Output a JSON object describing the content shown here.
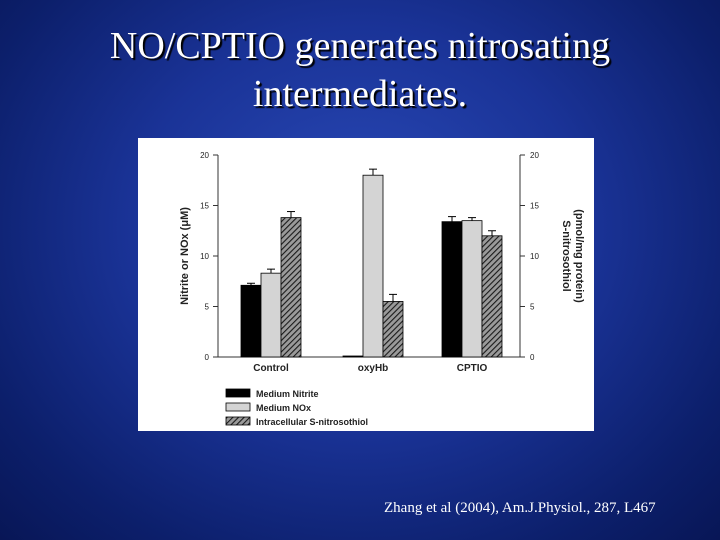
{
  "slide": {
    "title_line1": "NO/CPTIO generates nitrosating",
    "title_line2": "intermediates.",
    "citation": "Zhang et al (2004), Am.J.Physiol., 287, L467"
  },
  "chart_data": {
    "type": "bar",
    "categories": [
      "Control",
      "oxyHb",
      "CPTIO"
    ],
    "series": [
      {
        "name": "Medium Nitrite",
        "values": [
          7.1,
          0.1,
          13.4
        ],
        "errors": [
          0.2,
          0.05,
          0.5
        ],
        "color": "#000000",
        "pattern": "solid"
      },
      {
        "name": "Medium NOx",
        "values": [
          8.3,
          18.0,
          13.5
        ],
        "errors": [
          0.4,
          0.6,
          0.3
        ],
        "color": "#d4d4d4",
        "pattern": "solid"
      },
      {
        "name": "Intracellular S-nitrosothiol",
        "values": [
          13.8,
          5.5,
          12.0
        ],
        "errors": [
          0.6,
          0.7,
          0.5
        ],
        "color": "#555555",
        "pattern": "hatched"
      }
    ],
    "ylabel_left": "Nitrite or NOx (μM)",
    "ylabel_right_line1": "S-nitrosothiol",
    "ylabel_right_line2": "(pmol/mg protein)",
    "ylim": [
      0,
      20
    ],
    "yticks": [
      "0",
      "5",
      "10",
      "15",
      "20"
    ],
    "grid": false,
    "legend_position": "bottom-left"
  }
}
